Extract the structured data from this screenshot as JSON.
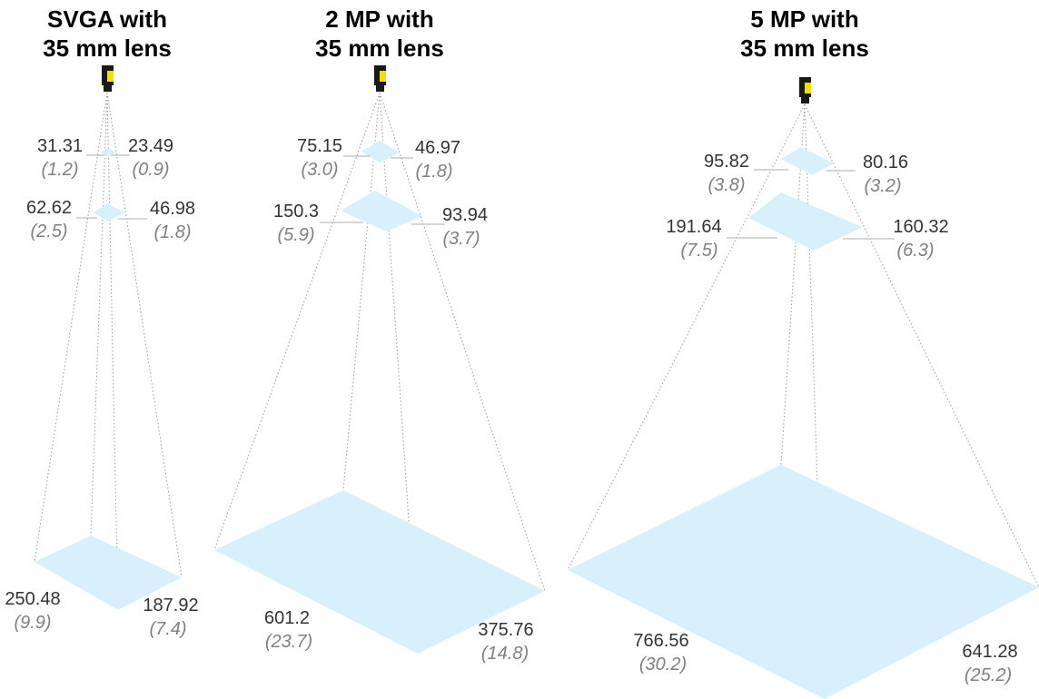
{
  "colors": {
    "plane": "#d7f0fb",
    "camera_body": "#1a1a1a",
    "camera_label": "#f4e000"
  },
  "panels": [
    {
      "title_line1": "SVGA with",
      "title_line2": "35 mm lens",
      "fields": [
        {
          "width": "31.31",
          "width_in": "(1.2)",
          "height": "23.49",
          "height_in": "(0.9)"
        },
        {
          "width": "62.62",
          "width_in": "(2.5)",
          "height": "46.98",
          "height_in": "(1.8)"
        },
        {
          "width": "250.48",
          "width_in": "(9.9)",
          "height": "187.92",
          "height_in": "(7.4)"
        }
      ]
    },
    {
      "title_line1": "2 MP with",
      "title_line2": "35 mm lens",
      "fields": [
        {
          "width": "75.15",
          "width_in": "(3.0)",
          "height": "46.97",
          "height_in": "(1.8)"
        },
        {
          "width": "150.3",
          "width_in": "(5.9)",
          "height": "93.94",
          "height_in": "(3.7)"
        },
        {
          "width": "601.2",
          "width_in": "(23.7)",
          "height": "375.76",
          "height_in": "(14.8)"
        }
      ]
    },
    {
      "title_line1": "5 MP with",
      "title_line2": "35 mm lens",
      "fields": [
        {
          "width": "95.82",
          "width_in": "(3.8)",
          "height": "80.16",
          "height_in": "(3.2)"
        },
        {
          "width": "191.64",
          "width_in": "(7.5)",
          "height": "160.32",
          "height_in": "(6.3)"
        },
        {
          "width": "766.56",
          "width_in": "(30.2)",
          "height": "641.28",
          "height_in": "(25.2)"
        }
      ]
    }
  ]
}
